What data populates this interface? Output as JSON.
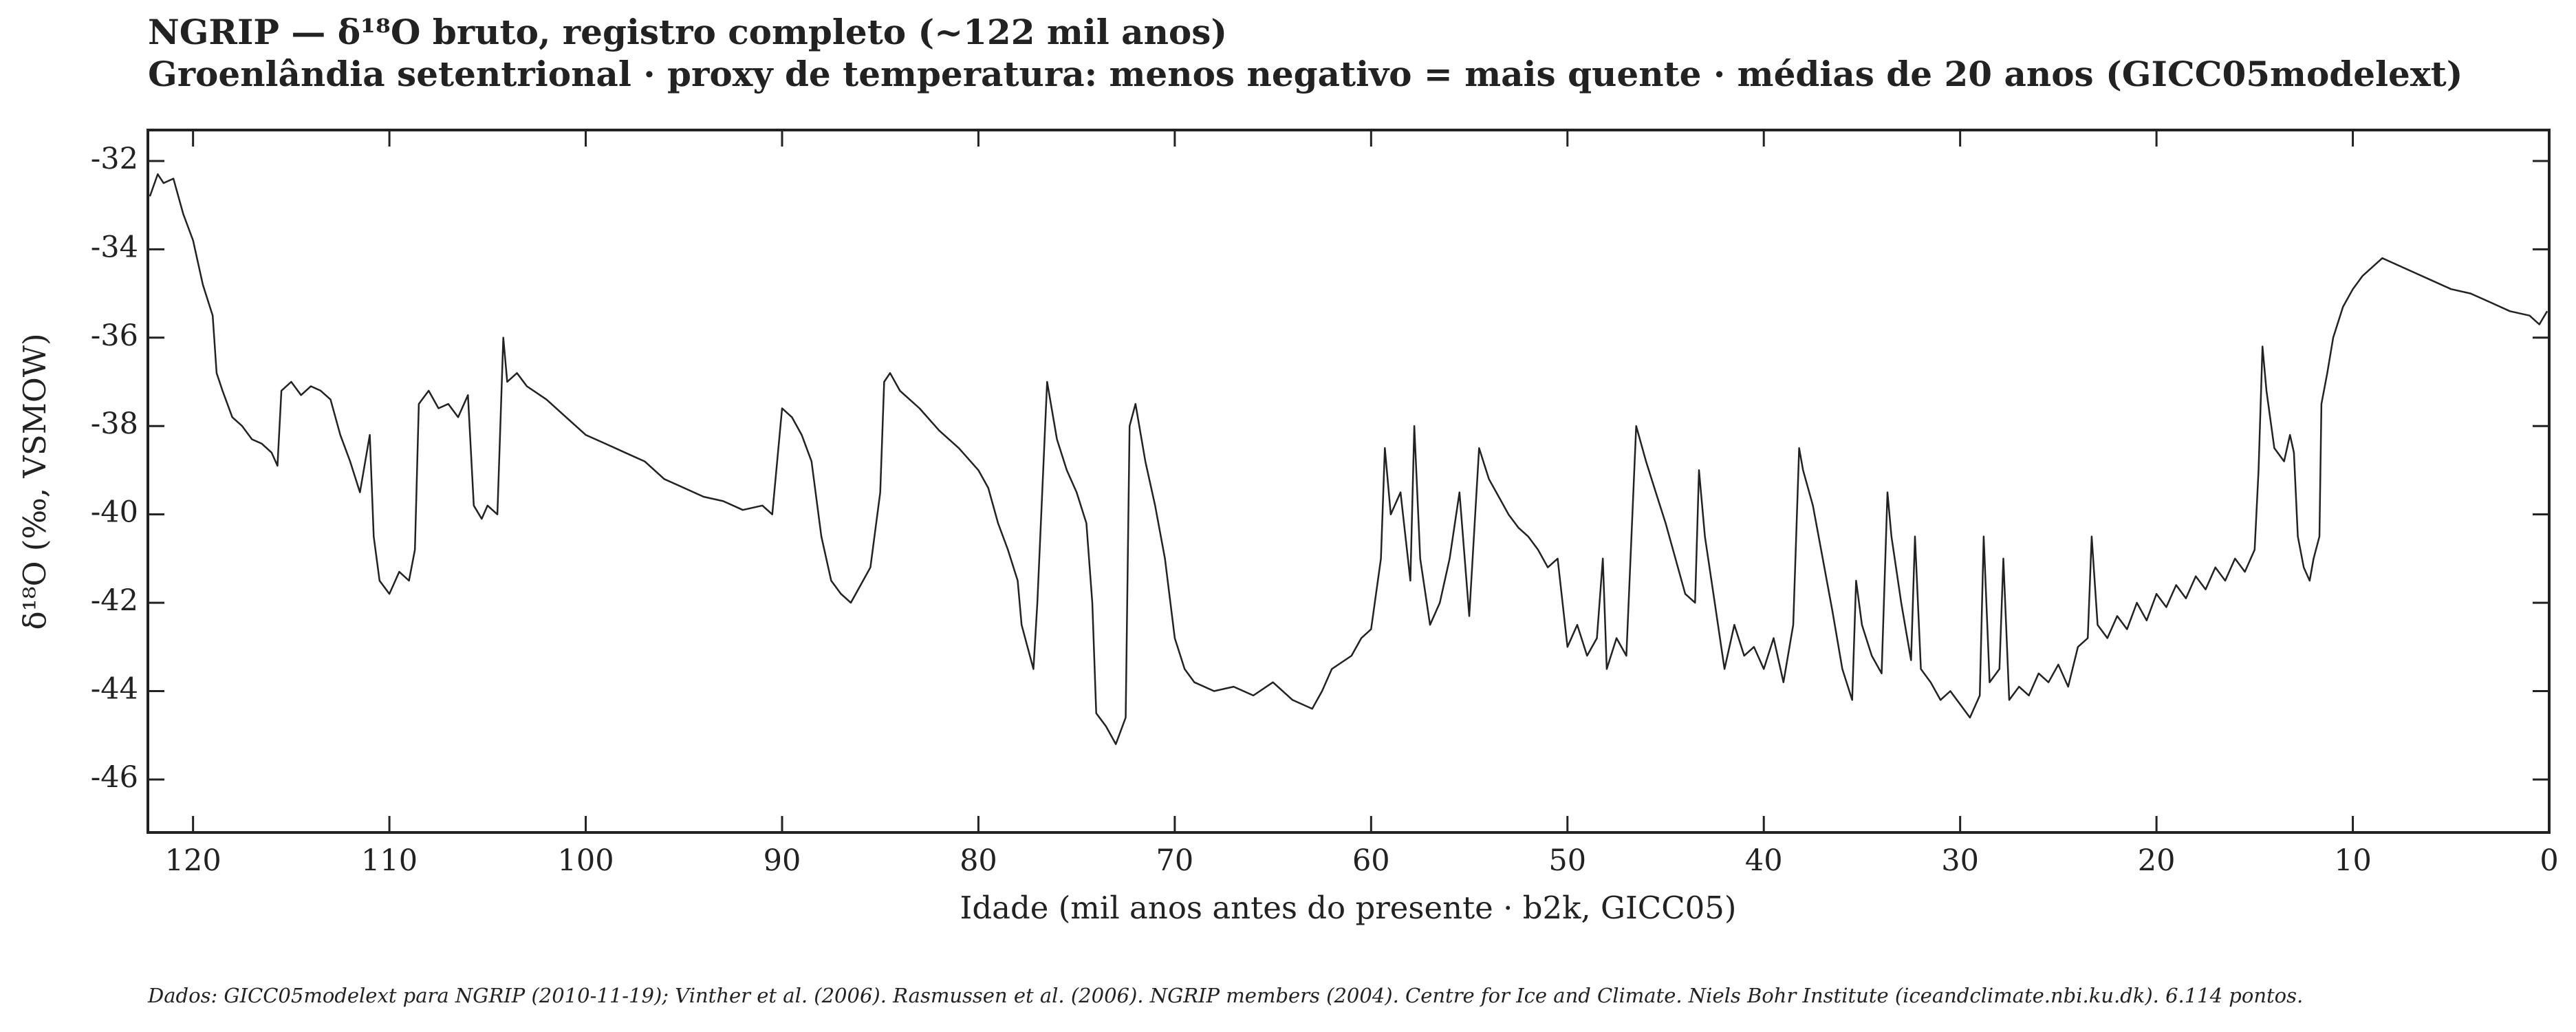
{
  "chart_data": {
    "type": "line",
    "title": "NGRIP — δ¹⁸O bruto, registro completo (~122 mil anos)",
    "subtitle": "Groenlândia setentrional · proxy de temperatura: menos negativo = mais quente · médias de 20 anos (GICC05modelext)",
    "xlabel": "Idade (mil anos antes do presente · b2k, GICC05)",
    "ylabel": "δ¹⁸O (‰, VSMOW)",
    "footnote": "Dados: GICC05modelext para NGRIP (2010-11-19); Vinther et al. (2006). Rasmussen et al. (2006). NGRIP members (2004). Centre for Ice and Climate. Niels Bohr Institute (iceandclimate.nbi.ku.dk). 6.114 pontos.",
    "color": "#222222",
    "xlim": [
      122.3,
      0
    ],
    "ylim": [
      -47.2,
      -31.3
    ],
    "xticks": [
      120,
      110,
      100,
      90,
      80,
      70,
      60,
      50,
      40,
      30,
      20,
      10,
      0
    ],
    "yticks": [
      -32,
      -34,
      -36,
      -38,
      -40,
      -42,
      -44,
      -46
    ],
    "x": [
      122.2,
      121.8,
      121.5,
      121,
      120.5,
      120,
      119.5,
      119,
      118.8,
      118.5,
      118,
      117.5,
      117,
      116.5,
      116,
      115.7,
      115.5,
      115,
      114.5,
      114,
      113.5,
      113,
      112.5,
      112,
      111.5,
      111,
      110.8,
      110.5,
      110,
      109.5,
      109,
      108.7,
      108.5,
      108,
      107.5,
      107,
      106.5,
      106,
      105.7,
      105.3,
      105,
      104.5,
      104.2,
      104,
      103.5,
      103,
      102,
      101,
      100,
      99,
      98,
      97,
      96,
      95,
      94,
      93,
      92,
      91,
      90.5,
      90,
      89.5,
      89,
      88.5,
      88,
      87.5,
      87,
      86.5,
      86,
      85.5,
      85,
      84.8,
      84.5,
      84,
      83.5,
      83,
      82,
      81,
      80,
      79.5,
      79,
      78.5,
      78,
      77.8,
      77.5,
      77.2,
      77,
      76.5,
      76,
      75.5,
      75,
      74.5,
      74.2,
      74,
      73.5,
      73,
      72.5,
      72.3,
      72,
      71.5,
      71,
      70.5,
      70,
      69.5,
      69,
      68,
      67,
      66,
      65,
      64,
      63,
      62.5,
      62,
      61,
      60.5,
      60,
      59.5,
      59.3,
      59,
      58.5,
      58,
      57.8,
      57.5,
      57,
      56.5,
      56,
      55.5,
      55,
      54.5,
      54,
      53.5,
      53,
      52.5,
      52,
      51.5,
      51,
      50.5,
      50,
      49.5,
      49,
      48.5,
      48.2,
      48,
      47.5,
      47,
      46.5,
      46,
      45.5,
      45,
      44.5,
      44,
      43.5,
      43.3,
      43,
      42.5,
      42,
      41.5,
      41,
      40.5,
      40,
      39.5,
      39,
      38.5,
      38.2,
      38,
      37.5,
      37,
      36.5,
      36,
      35.5,
      35.3,
      35,
      34.5,
      34,
      33.7,
      33.5,
      33,
      32.5,
      32.3,
      32,
      31.5,
      31,
      30.5,
      30,
      29.5,
      29,
      28.8,
      28.5,
      28,
      27.8,
      27.5,
      27,
      26.5,
      26,
      25.5,
      25,
      24.5,
      24,
      23.5,
      23.3,
      23,
      22.5,
      22,
      21.5,
      21,
      20.5,
      20,
      19.5,
      19,
      18.5,
      18,
      17.5,
      17,
      16.5,
      16,
      15.5,
      15,
      14.8,
      14.6,
      14.4,
      14,
      13.5,
      13.2,
      13,
      12.8,
      12.5,
      12.2,
      12,
      11.7,
      11.6,
      11.3,
      11,
      10.5,
      10,
      9.5,
      9,
      8.5,
      8,
      7,
      6,
      5,
      4,
      3,
      2,
      1,
      0.5,
      0.1
    ],
    "values": [
      -32.8,
      -32.3,
      -32.5,
      -32.4,
      -33.2,
      -33.8,
      -34.8,
      -35.5,
      -36.8,
      -37.2,
      -37.8,
      -38.0,
      -38.3,
      -38.4,
      -38.6,
      -38.9,
      -37.2,
      -37.0,
      -37.3,
      -37.1,
      -37.2,
      -37.4,
      -38.2,
      -38.8,
      -39.5,
      -38.2,
      -40.5,
      -41.5,
      -41.8,
      -41.3,
      -41.5,
      -40.8,
      -37.5,
      -37.2,
      -37.6,
      -37.5,
      -37.8,
      -37.3,
      -39.8,
      -40.1,
      -39.8,
      -40.0,
      -36.0,
      -37.0,
      -36.8,
      -37.1,
      -37.4,
      -37.8,
      -38.2,
      -38.4,
      -38.6,
      -38.8,
      -39.2,
      -39.4,
      -39.6,
      -39.7,
      -39.9,
      -39.8,
      -40.0,
      -37.6,
      -37.8,
      -38.2,
      -38.8,
      -40.5,
      -41.5,
      -41.8,
      -42.0,
      -41.6,
      -41.2,
      -39.5,
      -37.0,
      -36.8,
      -37.2,
      -37.4,
      -37.6,
      -38.1,
      -38.5,
      -39.0,
      -39.4,
      -40.2,
      -40.8,
      -41.5,
      -42.5,
      -43.0,
      -43.5,
      -42.0,
      -37.0,
      -38.3,
      -39.0,
      -39.5,
      -40.2,
      -42.0,
      -44.5,
      -44.8,
      -45.2,
      -44.6,
      -38.0,
      -37.5,
      -38.8,
      -39.8,
      -41.0,
      -42.8,
      -43.5,
      -43.8,
      -44.0,
      -43.9,
      -44.1,
      -43.8,
      -44.2,
      -44.4,
      -44.0,
      -43.5,
      -43.2,
      -42.8,
      -42.6,
      -41.0,
      -38.5,
      -40.0,
      -39.5,
      -41.5,
      -38.0,
      -41.0,
      -42.5,
      -42.0,
      -41.0,
      -39.5,
      -42.3,
      -38.5,
      -39.2,
      -39.6,
      -40.0,
      -40.3,
      -40.5,
      -40.8,
      -41.2,
      -41.0,
      -43.0,
      -42.5,
      -43.2,
      -42.8,
      -41.0,
      -43.5,
      -42.8,
      -43.2,
      -38.0,
      -38.8,
      -39.5,
      -40.2,
      -41.0,
      -41.8,
      -42.0,
      -39.0,
      -40.5,
      -42.0,
      -43.5,
      -42.5,
      -43.2,
      -43.0,
      -43.5,
      -42.8,
      -43.8,
      -42.5,
      -38.5,
      -39.0,
      -39.8,
      -41.0,
      -42.2,
      -43.5,
      -44.2,
      -41.5,
      -42.5,
      -43.2,
      -43.6,
      -39.5,
      -40.5,
      -42.0,
      -43.3,
      -40.5,
      -43.5,
      -43.8,
      -44.2,
      -44.0,
      -44.3,
      -44.6,
      -44.1,
      -40.5,
      -43.8,
      -43.5,
      -41.0,
      -44.2,
      -43.9,
      -44.1,
      -43.6,
      -43.8,
      -43.4,
      -43.9,
      -43.0,
      -42.8,
      -40.5,
      -42.5,
      -42.8,
      -42.3,
      -42.6,
      -42.0,
      -42.4,
      -41.8,
      -42.1,
      -41.6,
      -41.9,
      -41.4,
      -41.7,
      -41.2,
      -41.5,
      -41.0,
      -41.3,
      -40.8,
      -39.0,
      -36.2,
      -37.2,
      -38.5,
      -38.8,
      -38.2,
      -38.6,
      -40.5,
      -41.2,
      -41.5,
      -41.0,
      -40.5,
      -37.5,
      -36.8,
      -36.0,
      -35.3,
      -34.9,
      -34.6,
      -34.4,
      -34.2,
      -34.3,
      -34.5,
      -34.7,
      -34.9,
      -35.0,
      -35.2,
      -35.4,
      -35.5,
      -35.7,
      -35.4
    ]
  }
}
